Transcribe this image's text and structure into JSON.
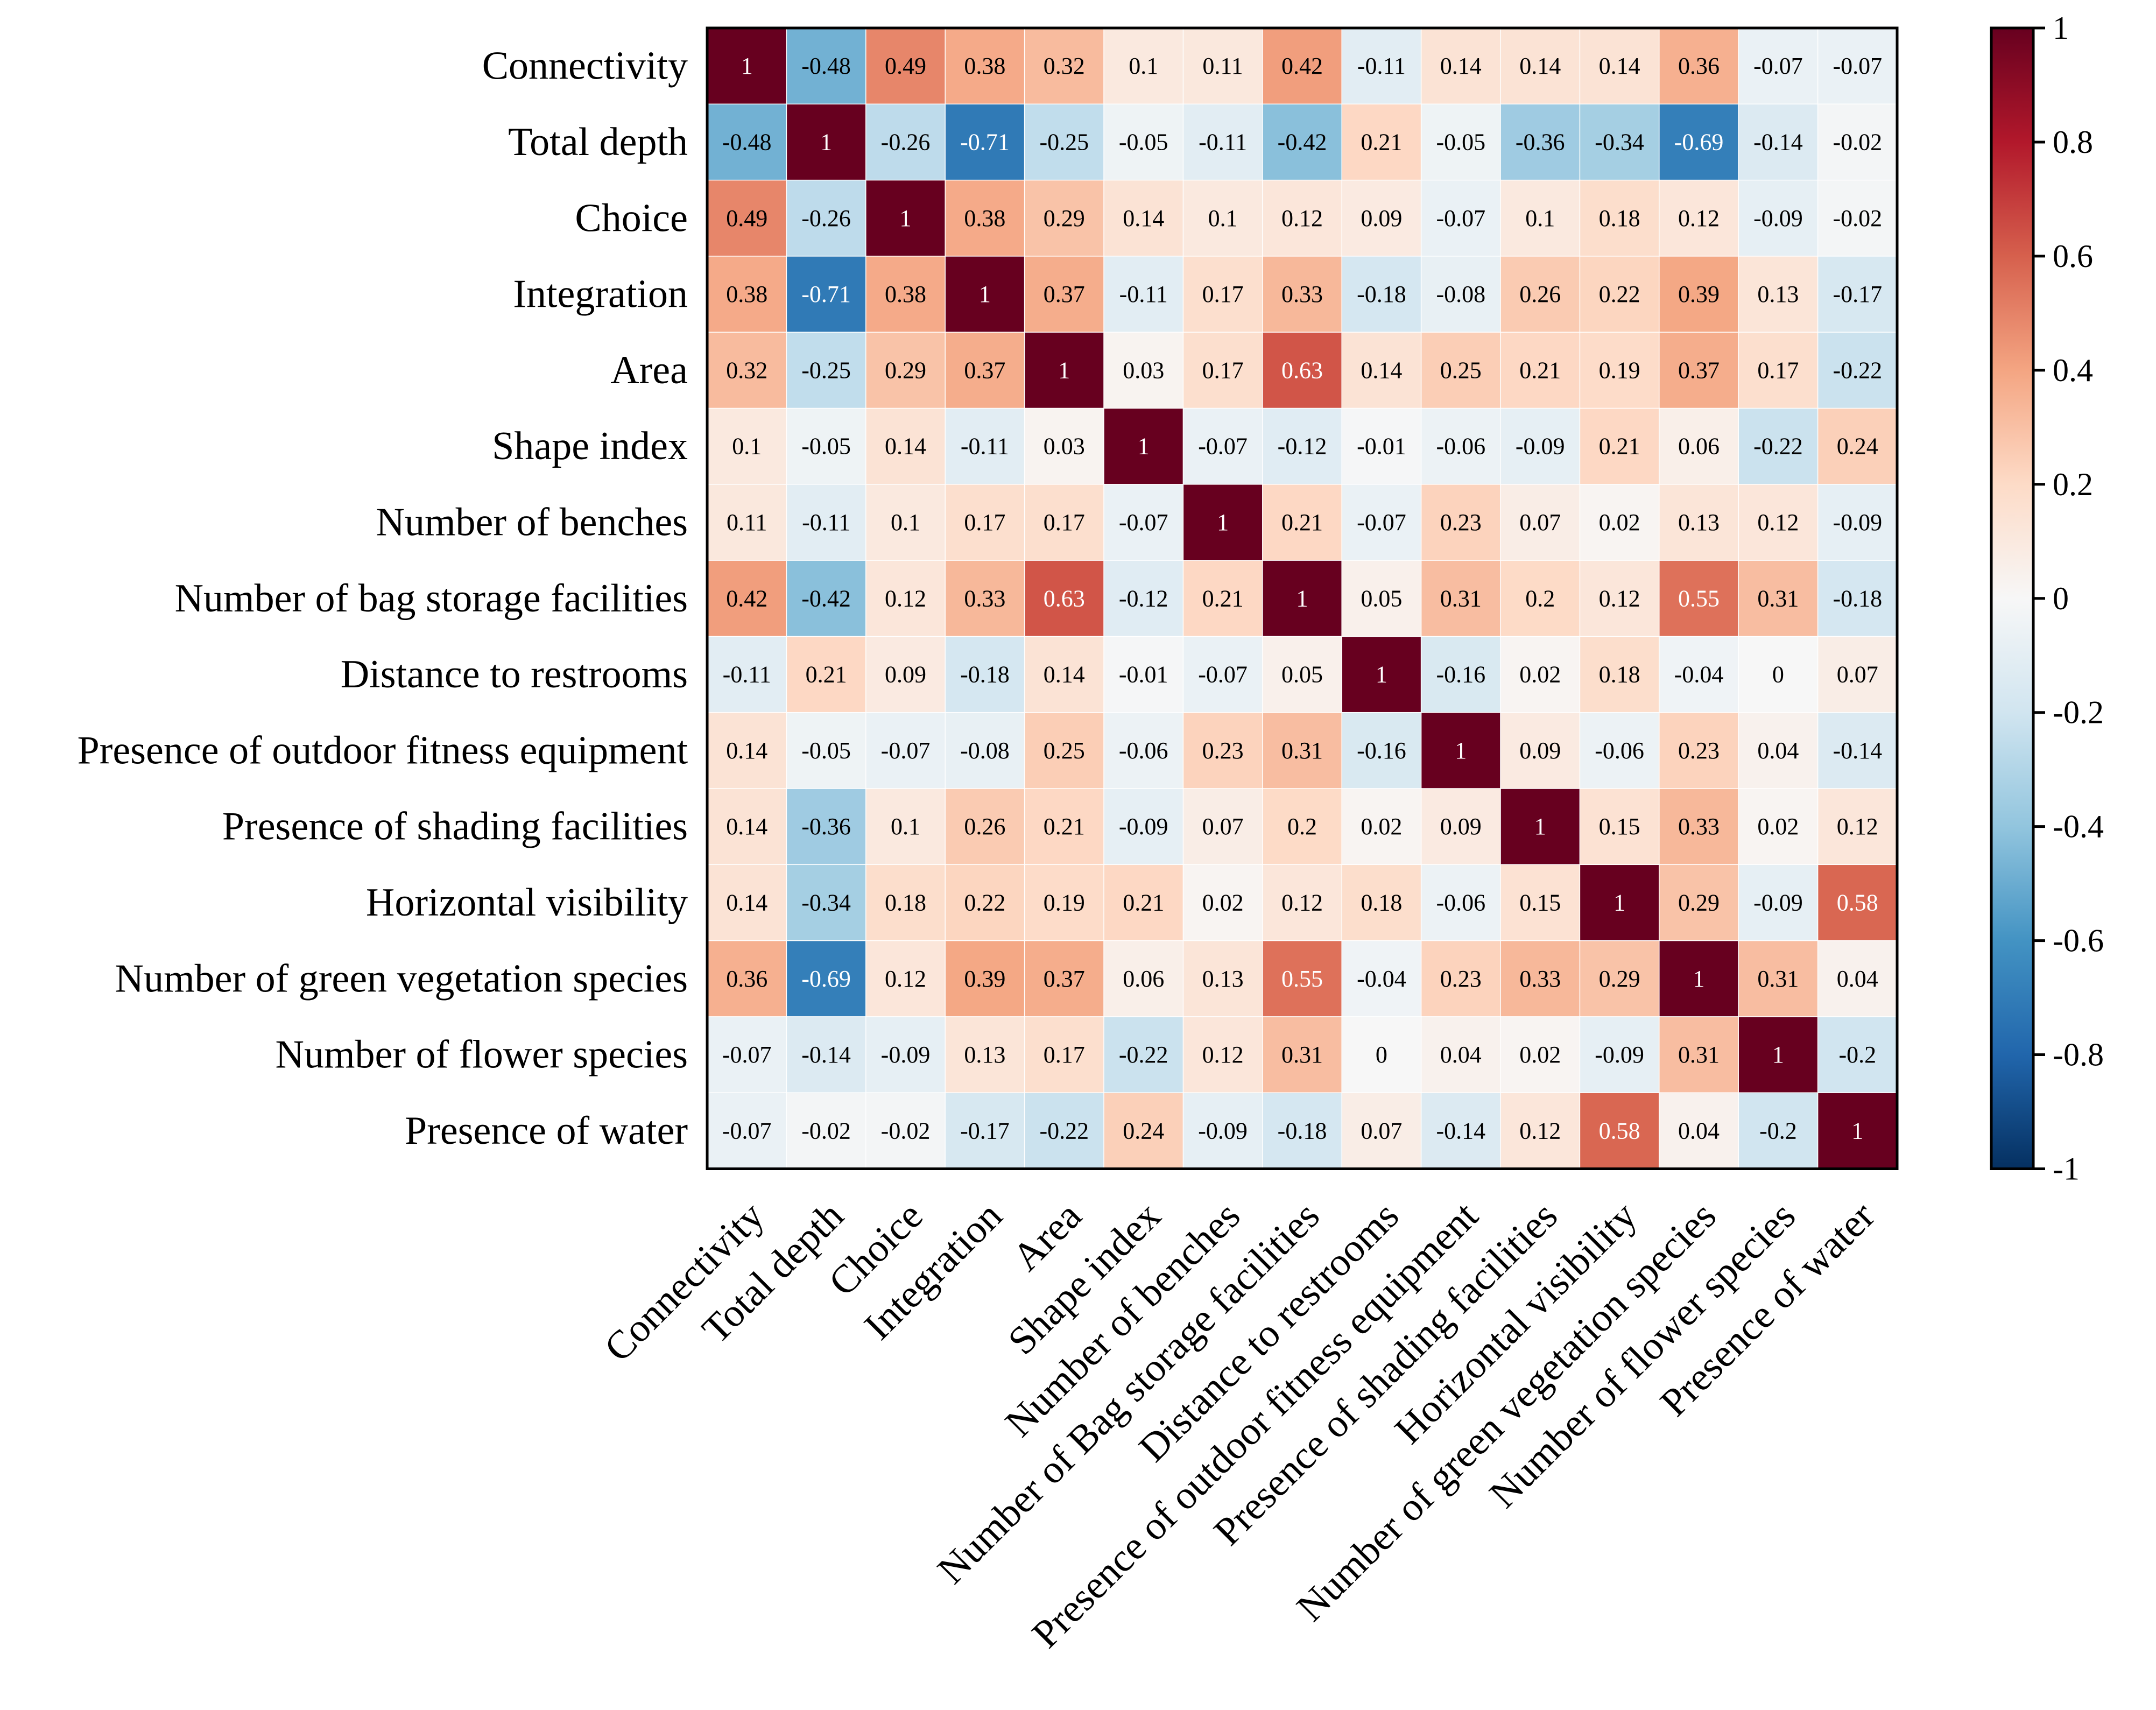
{
  "chart_data": {
    "type": "heatmap",
    "title": "",
    "row_labels": [
      "Connectivity",
      "Total depth",
      "Choice",
      "Integration",
      "Area",
      "Shape index",
      "Number of benches",
      "Number of bag storage facilities",
      "Distance to restrooms",
      "Presence of outdoor fitness equipment",
      "Presence of shading facilities",
      "Horizontal visibility",
      "Number of green vegetation species",
      "Number of flower species",
      "Presence of water"
    ],
    "column_labels": [
      "Connectivity",
      "Total depth",
      "Choice",
      "Integration",
      "Area",
      "Shape index",
      "Number of benches",
      "Number of Bag storage facilities",
      "Distance to restrooms",
      "Presence of outdoor fitness equipment",
      "Presence of shading facilities",
      "Horizontal visibility",
      "Number of green vegetation species",
      "Number of flower species",
      "Presence of water"
    ],
    "values": [
      [
        1,
        -0.48,
        0.49,
        0.38,
        0.32,
        0.1,
        0.11,
        0.42,
        -0.11,
        0.14,
        0.14,
        0.14,
        0.36,
        -0.07,
        -0.07
      ],
      [
        -0.48,
        1,
        -0.26,
        -0.71,
        -0.25,
        -0.05,
        -0.11,
        -0.42,
        0.21,
        -0.05,
        -0.36,
        -0.34,
        -0.69,
        -0.14,
        -0.02
      ],
      [
        0.49,
        -0.26,
        1,
        0.38,
        0.29,
        0.14,
        0.1,
        0.12,
        0.09,
        -0.07,
        0.1,
        0.18,
        0.12,
        -0.09,
        -0.02
      ],
      [
        0.38,
        -0.71,
        0.38,
        1,
        0.37,
        -0.11,
        0.17,
        0.33,
        -0.18,
        -0.08,
        0.26,
        0.22,
        0.39,
        0.13,
        -0.17
      ],
      [
        0.32,
        -0.25,
        0.29,
        0.37,
        1,
        0.03,
        0.17,
        0.63,
        0.14,
        0.25,
        0.21,
        0.19,
        0.37,
        0.17,
        -0.22
      ],
      [
        0.1,
        -0.05,
        0.14,
        -0.11,
        0.03,
        1,
        -0.07,
        -0.12,
        -0.01,
        -0.06,
        -0.09,
        0.21,
        0.06,
        -0.22,
        0.24
      ],
      [
        0.11,
        -0.11,
        0.1,
        0.17,
        0.17,
        -0.07,
        1,
        0.21,
        -0.07,
        0.23,
        0.07,
        0.02,
        0.13,
        0.12,
        -0.09
      ],
      [
        0.42,
        -0.42,
        0.12,
        0.33,
        0.63,
        -0.12,
        0.21,
        1,
        0.05,
        0.31,
        0.2,
        0.12,
        0.55,
        0.31,
        -0.18
      ],
      [
        -0.11,
        0.21,
        0.09,
        -0.18,
        0.14,
        -0.01,
        -0.07,
        0.05,
        1,
        -0.16,
        0.02,
        0.18,
        -0.04,
        0,
        0.07
      ],
      [
        0.14,
        -0.05,
        -0.07,
        -0.08,
        0.25,
        -0.06,
        0.23,
        0.31,
        -0.16,
        1,
        0.09,
        -0.06,
        0.23,
        0.04,
        -0.14
      ],
      [
        0.14,
        -0.36,
        0.1,
        0.26,
        0.21,
        -0.09,
        0.07,
        0.2,
        0.02,
        0.09,
        1,
        0.15,
        0.33,
        0.02,
        0.12
      ],
      [
        0.14,
        -0.34,
        0.18,
        0.22,
        0.19,
        0.21,
        0.02,
        0.12,
        0.18,
        -0.06,
        0.15,
        1,
        0.29,
        -0.09,
        0.58
      ],
      [
        0.36,
        -0.69,
        0.12,
        0.39,
        0.37,
        0.06,
        0.13,
        0.55,
        -0.04,
        0.23,
        0.33,
        0.29,
        1,
        0.31,
        0.04
      ],
      [
        -0.07,
        -0.14,
        -0.09,
        0.13,
        0.17,
        -0.22,
        0.12,
        0.31,
        0,
        0.04,
        0.02,
        -0.09,
        0.31,
        1,
        -0.2
      ],
      [
        -0.07,
        -0.02,
        -0.02,
        -0.17,
        -0.22,
        0.24,
        -0.09,
        -0.18,
        0.07,
        -0.14,
        0.12,
        0.58,
        0.04,
        -0.2,
        1
      ]
    ],
    "value_range": [
      -1,
      1
    ],
    "colorscale": {
      "name": "RdBu_r",
      "stops": [
        "#053061",
        "#2166ac",
        "#4393c3",
        "#92c5de",
        "#d1e5f0",
        "#f7f7f7",
        "#fddbc7",
        "#f4a582",
        "#d6604d",
        "#b2182b",
        "#67001f"
      ]
    },
    "colorbar": {
      "position": "right",
      "ticks": [
        1,
        0.8,
        0.6,
        0.4,
        0.2,
        0,
        -0.2,
        -0.4,
        -0.6,
        -0.8,
        -1
      ],
      "tick_labels": [
        "1",
        "0.8",
        "0.6",
        "0.4",
        "0.2",
        "0",
        "-0.2",
        "-0.4",
        "-0.6",
        "-0.8",
        "-1"
      ]
    },
    "show_cell_values": true,
    "xlabel": "",
    "ylabel": ""
  }
}
